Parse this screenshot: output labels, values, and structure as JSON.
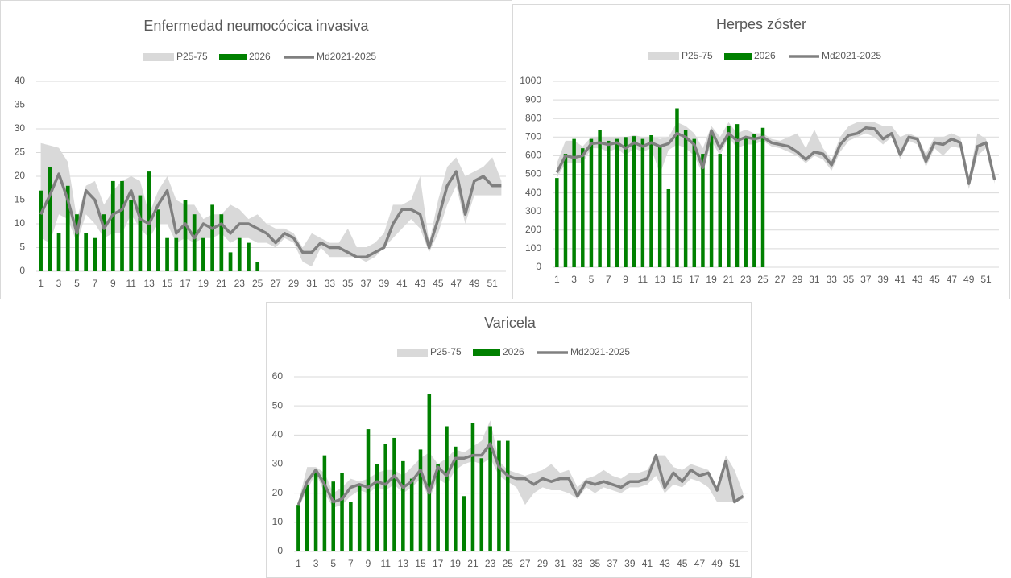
{
  "chart_data": [
    {
      "type": "bar-line",
      "title": "Enfermedad neumocócica invasiva",
      "legend": "top",
      "categories": [
        1,
        null,
        3,
        null,
        5,
        null,
        7,
        null,
        9,
        null,
        11,
        null,
        13,
        null,
        15,
        null,
        17,
        null,
        19,
        null,
        21,
        null,
        23,
        null,
        25,
        null,
        27,
        null,
        29,
        null,
        31,
        null,
        33,
        null,
        35,
        null,
        37,
        null,
        39,
        null,
        41,
        null,
        43,
        null,
        45,
        null,
        47,
        null,
        49,
        null,
        51,
        null
      ],
      "ylim": [
        0,
        40
      ],
      "yticks": [
        0,
        5,
        10,
        15,
        20,
        25,
        30,
        35,
        40
      ],
      "grid": true,
      "series": [
        {
          "name": "P25-75",
          "type": "band",
          "color": "#d9d9d9",
          "low": [
            7,
            6,
            12,
            11,
            6,
            12,
            10,
            7,
            8,
            8,
            12,
            9,
            7,
            10,
            10,
            6,
            7,
            6,
            7,
            7,
            8,
            6,
            7,
            7,
            6,
            6,
            5,
            7,
            6,
            2,
            1,
            5,
            3,
            3,
            3,
            3,
            2,
            3,
            5,
            7,
            9,
            11,
            9,
            4,
            8,
            14,
            18,
            10,
            16,
            16,
            16,
            16
          ],
          "high": [
            27,
            26.5,
            26,
            23,
            11,
            18,
            19,
            14,
            17,
            19,
            20,
            19,
            12,
            17,
            20,
            15,
            14,
            14,
            11,
            12,
            12,
            14,
            13,
            11,
            12,
            10,
            9,
            9,
            8,
            5,
            8,
            7,
            6,
            6,
            9,
            5,
            5,
            6,
            8,
            14,
            14,
            15,
            20,
            6,
            15,
            22,
            24,
            20,
            21,
            22,
            24,
            19
          ]
        },
        {
          "name": "2026",
          "type": "bar",
          "color": "#008000",
          "values": [
            17,
            22,
            8,
            18,
            12,
            8,
            7,
            12,
            19,
            19,
            15,
            16,
            21,
            13,
            7,
            7,
            15,
            12,
            7,
            14,
            12,
            4,
            7,
            6,
            2,
            null,
            null,
            null,
            null,
            null,
            null,
            null,
            null,
            null,
            null,
            null,
            null,
            null,
            null,
            null,
            null,
            null,
            null,
            null,
            null,
            null,
            null,
            null,
            null,
            null,
            null,
            null
          ]
        },
        {
          "name": "Md2021-2025",
          "type": "line",
          "color": "#808080",
          "values": [
            12,
            16,
            20.5,
            15,
            8,
            17,
            15,
            9,
            12,
            13,
            17,
            11,
            10,
            14,
            17,
            8,
            10,
            7,
            10,
            9,
            10,
            8,
            10,
            10,
            9,
            8,
            6,
            8,
            7,
            4,
            4,
            6,
            5,
            5,
            4,
            3,
            3,
            4,
            5,
            10,
            13,
            13,
            12,
            5,
            11,
            18,
            21,
            12,
            19,
            20,
            18,
            18
          ]
        }
      ]
    },
    {
      "type": "bar-line",
      "title": "Herpes zóster",
      "legend": "top",
      "categories": [
        1,
        null,
        3,
        null,
        5,
        null,
        7,
        null,
        9,
        null,
        11,
        null,
        13,
        null,
        15,
        null,
        17,
        null,
        19,
        null,
        21,
        null,
        23,
        null,
        25,
        null,
        27,
        null,
        29,
        null,
        31,
        null,
        33,
        null,
        35,
        null,
        37,
        null,
        39,
        null,
        41,
        null,
        43,
        null,
        45,
        null,
        47,
        null,
        49,
        null,
        51,
        null
      ],
      "ylim": [
        0,
        1000
      ],
      "yticks": [
        0,
        100,
        200,
        300,
        400,
        500,
        600,
        700,
        800,
        900,
        1000
      ],
      "grid": true,
      "series": [
        {
          "name": "P25-75",
          "type": "band",
          "color": "#d9d9d9",
          "low": [
            480,
            560,
            560,
            560,
            640,
            640,
            620,
            640,
            600,
            640,
            620,
            640,
            500,
            630,
            660,
            640,
            600,
            500,
            680,
            600,
            700,
            640,
            660,
            660,
            680,
            650,
            640,
            620,
            600,
            560,
            600,
            580,
            520,
            620,
            680,
            700,
            720,
            700,
            660,
            700,
            580,
            680,
            660,
            540,
            640,
            600,
            650,
            640,
            420,
            600,
            640,
            450
          ],
          "high": [
            560,
            680,
            680,
            650,
            700,
            700,
            700,
            700,
            700,
            710,
            700,
            700,
            690,
            700,
            780,
            760,
            720,
            640,
            760,
            700,
            780,
            720,
            740,
            720,
            720,
            690,
            680,
            700,
            720,
            640,
            740,
            640,
            580,
            700,
            760,
            780,
            780,
            780,
            760,
            760,
            700,
            720,
            700,
            610,
            700,
            700,
            720,
            700,
            480,
            720,
            690,
            500
          ]
        },
        {
          "name": "2026",
          "type": "bar",
          "color": "#008000",
          "values": [
            480,
            610,
            690,
            640,
            690,
            740,
            680,
            690,
            700,
            705,
            690,
            710,
            650,
            420,
            855,
            740,
            690,
            610,
            720,
            610,
            760,
            770,
            700,
            715,
            750,
            null,
            null,
            null,
            null,
            null,
            null,
            null,
            null,
            null,
            null,
            null,
            null,
            null,
            null,
            null,
            null,
            null,
            null,
            null,
            null,
            null,
            null,
            null,
            null,
            null,
            null,
            null
          ]
        },
        {
          "name": "Md2021-2025",
          "type": "line",
          "color": "#808080",
          "values": [
            510,
            600,
            590,
            600,
            665,
            670,
            660,
            670,
            640,
            670,
            650,
            670,
            650,
            665,
            720,
            700,
            660,
            535,
            735,
            640,
            720,
            680,
            700,
            690,
            700,
            670,
            660,
            650,
            620,
            580,
            620,
            610,
            550,
            660,
            710,
            720,
            750,
            745,
            690,
            720,
            605,
            700,
            690,
            570,
            670,
            660,
            690,
            670,
            450,
            650,
            670,
            470
          ]
        }
      ]
    },
    {
      "type": "bar-line",
      "title": "Varicela",
      "legend": "top",
      "categories": [
        1,
        null,
        3,
        null,
        5,
        null,
        7,
        null,
        9,
        null,
        11,
        null,
        13,
        null,
        15,
        null,
        17,
        null,
        19,
        null,
        21,
        null,
        23,
        null,
        25,
        null,
        27,
        null,
        29,
        null,
        31,
        null,
        33,
        null,
        35,
        null,
        37,
        null,
        39,
        null,
        41,
        null,
        43,
        null,
        45,
        null,
        47,
        null,
        49,
        null,
        51,
        null
      ],
      "ylim": [
        0,
        60
      ],
      "yticks": [
        0,
        10,
        20,
        30,
        40,
        50,
        60
      ],
      "grid": true,
      "series": [
        {
          "name": "P25-75",
          "type": "band",
          "color": "#d9d9d9",
          "low": [
            15,
            21,
            27,
            20,
            15,
            16,
            19,
            21,
            20,
            22,
            21,
            23,
            20,
            22,
            25,
            18,
            25,
            23,
            28,
            30,
            31,
            30,
            32,
            26,
            24,
            22,
            16,
            20,
            22,
            21,
            21,
            20,
            18,
            22,
            20,
            22,
            21,
            20,
            22,
            22,
            23,
            26,
            20,
            23,
            22,
            25,
            24,
            22,
            17,
            17,
            17,
            18
          ],
          "high": [
            17,
            29,
            29,
            27,
            20,
            22,
            25,
            24,
            25,
            27,
            28,
            28,
            26,
            29,
            32,
            34,
            30,
            32,
            35,
            34,
            36,
            38,
            45,
            31,
            28,
            27,
            26,
            27,
            28,
            30,
            27,
            28,
            22,
            25,
            26,
            28,
            26,
            25,
            27,
            27,
            28,
            33,
            33,
            29,
            28,
            30,
            29,
            28,
            22,
            33,
            28,
            20
          ]
        },
        {
          "name": "2026",
          "type": "bar",
          "color": "#008000",
          "values": [
            16,
            23,
            28,
            33,
            24,
            27,
            17,
            23,
            42,
            30,
            37,
            39,
            31,
            25,
            35,
            54,
            30,
            43,
            36,
            19,
            44,
            32,
            43,
            38,
            38,
            null,
            null,
            null,
            null,
            null,
            null,
            null,
            null,
            null,
            null,
            null,
            null,
            null,
            null,
            null,
            null,
            null,
            null,
            null,
            null,
            null,
            null,
            null,
            null,
            null,
            null,
            null
          ]
        },
        {
          "name": "Md2021-2025",
          "type": "line",
          "color": "#808080",
          "values": [
            16,
            24,
            28,
            23,
            17,
            18,
            22,
            23,
            22,
            24,
            23,
            26,
            22,
            24,
            28,
            20,
            29,
            26,
            32,
            32,
            33,
            33,
            37,
            29,
            26,
            25,
            25,
            23,
            25,
            24,
            25,
            25,
            19,
            24,
            23,
            24,
            23,
            22,
            24,
            24,
            25,
            33,
            22,
            27,
            24,
            28,
            26,
            27,
            21,
            31,
            17,
            19
          ]
        }
      ]
    }
  ]
}
